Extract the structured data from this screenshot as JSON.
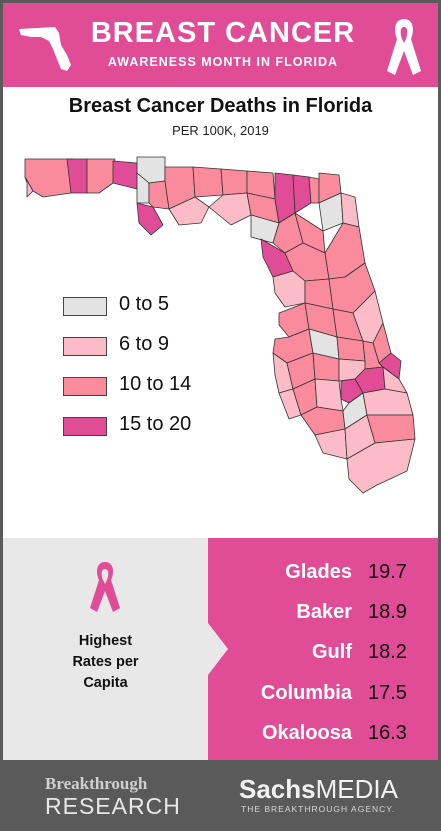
{
  "header": {
    "title": "BREAST CANCER",
    "subtitle": "AWARENESS MONTH IN FLORIDA"
  },
  "map": {
    "title": "Breast Cancer Deaths in Florida",
    "subtitle": "PER 100K, 2019",
    "legend": [
      {
        "label": "0 to 5",
        "color": "#e3e3e3"
      },
      {
        "label": "6 to 9",
        "color": "#fbbcc8"
      },
      {
        "label": "10 to 14",
        "color": "#f98b9c"
      },
      {
        "label": "15 to 20",
        "color": "#e04c96"
      }
    ]
  },
  "panel": {
    "caption_line1": "Highest",
    "caption_line2": "Rates per",
    "caption_line3": "Capita",
    "rates": [
      {
        "county": "Glades",
        "value": "19.7"
      },
      {
        "county": "Baker",
        "value": "18.9"
      },
      {
        "county": "Gulf",
        "value": "18.2"
      },
      {
        "county": "Columbia",
        "value": "17.5"
      },
      {
        "county": "Okaloosa",
        "value": "16.3"
      }
    ]
  },
  "footer": {
    "left_line1": "Breakthrough",
    "left_line2": "RESEARCH",
    "right_line1_bold": "Sachs",
    "right_line1_rest": "MEDIA",
    "right_line2": "THE BREAKTHROUGH AGENCY."
  },
  "colors": {
    "accent": "#e04c96",
    "panel_gray": "#e8e8e8",
    "footer_gray": "#5a5a5a"
  }
}
